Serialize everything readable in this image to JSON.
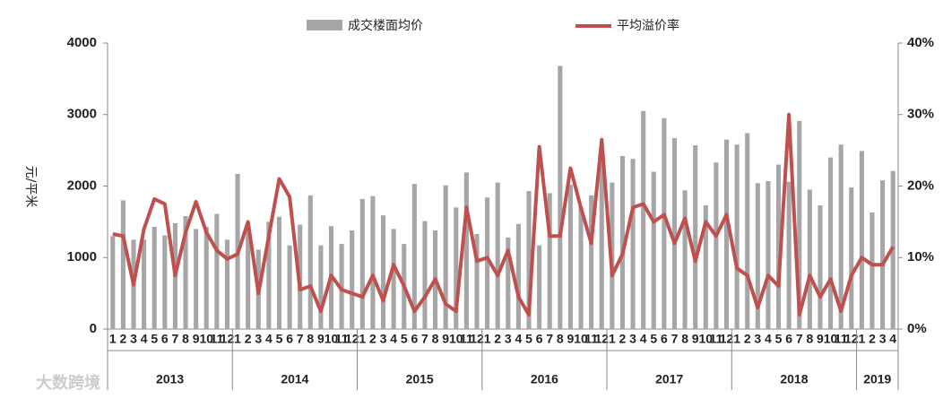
{
  "chart_data": {
    "type": "bar-line",
    "y_label": "元/平米",
    "categories": [
      "1",
      "2",
      "3",
      "4",
      "5",
      "6",
      "7",
      "8",
      "9",
      "10",
      "11",
      "12",
      "1",
      "2",
      "3",
      "4",
      "5",
      "6",
      "7",
      "8",
      "9",
      "10",
      "11",
      "12",
      "1",
      "2",
      "3",
      "4",
      "5",
      "6",
      "7",
      "8",
      "9",
      "10",
      "11",
      "12",
      "1",
      "2",
      "3",
      "4",
      "5",
      "6",
      "7",
      "8",
      "9",
      "10",
      "11",
      "12",
      "1",
      "2",
      "3",
      "4",
      "5",
      "6",
      "7",
      "8",
      "9",
      "10",
      "11",
      "12",
      "1",
      "2",
      "3",
      "4",
      "5",
      "6",
      "7",
      "8",
      "9",
      "10",
      "11",
      "12",
      "1",
      "2",
      "3",
      "4"
    ],
    "years": [
      "2013",
      "2014",
      "2015",
      "2016",
      "2017",
      "2018",
      "2019"
    ],
    "series": [
      {
        "name": "成交楼面均价",
        "type": "bar",
        "color": "#a6a6a6",
        "axis": "y",
        "values": [
          1300,
          1800,
          1250,
          1250,
          1430,
          1310,
          1480,
          1580,
          1400,
          1430,
          1610,
          1250,
          2170,
          1450,
          1110,
          1500,
          1570,
          1170,
          1460,
          1870,
          1170,
          1440,
          1190,
          1380,
          1820,
          1860,
          1590,
          1400,
          1190,
          2030,
          1510,
          1380,
          2010,
          1700,
          2190,
          1330,
          1840,
          2050,
          1280,
          1470,
          1930,
          1170,
          1900,
          3680,
          2020,
          1710,
          1870,
          2450,
          2050,
          2420,
          2380,
          3050,
          2200,
          2950,
          2670,
          1940,
          2570,
          1730,
          2330,
          2650,
          2580,
          2740,
          2040,
          2070,
          2300,
          2060,
          2910,
          1950,
          1730,
          2400,
          2580,
          1980,
          2490,
          1630,
          2080,
          2210
        ]
      },
      {
        "name": "平均溢价率",
        "type": "line",
        "color": "#c0504d",
        "axis": "y2",
        "values": [
          13.3,
          13.0,
          6.2,
          14.0,
          18.2,
          17.5,
          7.5,
          13.5,
          17.8,
          13.5,
          11.0,
          9.8,
          10.5,
          15.0,
          5.0,
          13.0,
          21.0,
          18.5,
          5.5,
          6.0,
          2.5,
          7.5,
          5.5,
          5.0,
          4.5,
          7.5,
          4.0,
          9.0,
          6.0,
          2.5,
          4.5,
          7.0,
          3.5,
          2.5,
          17.0,
          9.5,
          10.0,
          7.5,
          11.0,
          4.5,
          2.0,
          25.5,
          13.0,
          13.0,
          22.5,
          17.0,
          12.0,
          26.5,
          7.5,
          10.5,
          17.0,
          17.5,
          15.0,
          16.0,
          12.0,
          15.5,
          9.5,
          15.0,
          13.0,
          16.0,
          8.5,
          7.5,
          3.0,
          7.5,
          6.0,
          30.0,
          2.0,
          7.5,
          4.5,
          7.0,
          2.5,
          7.5,
          10.0,
          9.0,
          9.0,
          11.5
        ]
      }
    ],
    "ylim": [
      0,
      4000
    ],
    "yticks": [
      0,
      1000,
      2000,
      3000,
      4000
    ],
    "y2lim": [
      0,
      40
    ],
    "y2ticks": [
      {
        "value": 0,
        "label": "0%"
      },
      {
        "value": 10,
        "label": "10%"
      },
      {
        "value": 20,
        "label": "20%"
      },
      {
        "value": 30,
        "label": "30%"
      },
      {
        "value": 40,
        "label": "40%"
      }
    ],
    "watermark": "大数跨境"
  }
}
